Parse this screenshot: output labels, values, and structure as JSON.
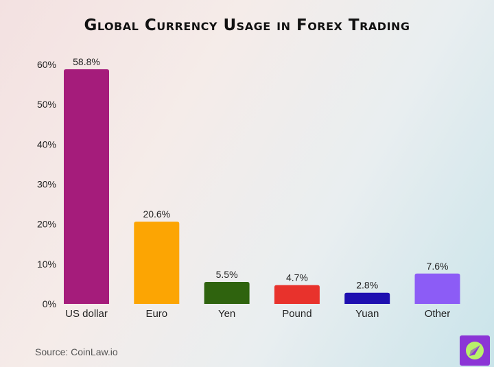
{
  "title": "Global Currency Usage in Forex Trading",
  "source": "Source: CoinLaw.io",
  "logo_icon": "compass-leaf-icon",
  "chart_data": {
    "type": "bar",
    "title": "Global Currency Usage in Forex Trading",
    "categories": [
      "US dollar",
      "Euro",
      "Yen",
      "Pound",
      "Yuan",
      "Other"
    ],
    "values": [
      58.8,
      20.6,
      5.5,
      4.7,
      2.8,
      7.6
    ],
    "value_labels": [
      "58.8%",
      "20.6%",
      "5.5%",
      "4.7%",
      "2.8%",
      "7.6%"
    ],
    "colors": [
      "#a51c7b",
      "#fca503",
      "#2f630e",
      "#e8322c",
      "#1e0fb0",
      "#8c5cf6"
    ],
    "yticks": [
      0,
      10,
      20,
      30,
      40,
      50,
      60
    ],
    "ytick_labels": [
      "0%",
      "10%",
      "20%",
      "30%",
      "40%",
      "50%",
      "60%"
    ],
    "ylim": [
      0,
      60
    ],
    "xlabel": "",
    "ylabel": "",
    "grid": false,
    "legend": "none"
  }
}
